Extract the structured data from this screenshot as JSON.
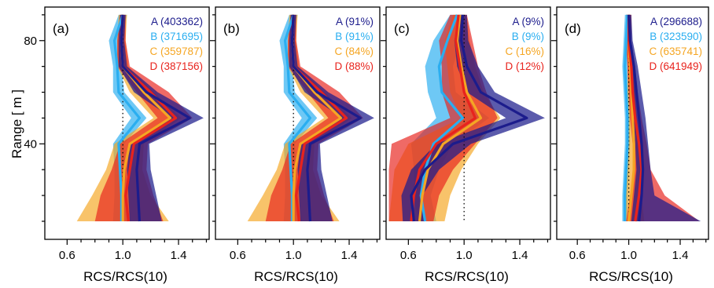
{
  "figure": {
    "ylabel": "Range [ m ]",
    "xlabel": "RCS/RCS(10)"
  },
  "colors": {
    "A": "#1c1c8c",
    "B": "#2aaef0",
    "C": "#f5a623",
    "D": "#e8231d"
  },
  "chart_data": [
    {
      "type": "line",
      "panel_label": "(a)",
      "xlabel": "RCS/RCS(10)",
      "ylabel": "Range [ m ]",
      "xlim": [
        0.44,
        1.62
      ],
      "ylim": [
        3,
        93
      ],
      "xticks": [
        0.6,
        1.0,
        1.4
      ],
      "yticks": [
        40,
        80
      ],
      "reference_x": 1.0,
      "y": [
        90,
        80,
        70,
        60,
        50,
        40,
        30,
        20,
        10
      ],
      "series": [
        {
          "key": "A",
          "legend": "A (403362)",
          "values": [
            1.0,
            0.99,
            1.0,
            1.17,
            1.48,
            1.12,
            1.1,
            1.11,
            1.12
          ],
          "band_low": [
            0.98,
            0.97,
            0.97,
            1.08,
            1.35,
            1.05,
            1.03,
            1.04,
            1.05
          ],
          "band_high": [
            1.02,
            1.01,
            1.03,
            1.25,
            1.58,
            1.19,
            1.2,
            1.24,
            1.28
          ]
        },
        {
          "key": "B",
          "legend": "B (371695)",
          "values": [
            1.0,
            0.94,
            0.96,
            0.97,
            1.12,
            0.97,
            0.98,
            0.99,
            0.99
          ],
          "band_low": [
            0.97,
            0.9,
            0.93,
            0.93,
            1.06,
            0.93,
            0.94,
            0.94,
            0.93
          ],
          "band_high": [
            1.03,
            0.98,
            0.99,
            1.01,
            1.17,
            1.01,
            1.02,
            1.04,
            1.06
          ]
        },
        {
          "key": "C",
          "legend": "C (359787)",
          "values": [
            1.0,
            0.99,
            1.0,
            1.15,
            1.34,
            1.05,
            1.01,
            1.0,
            1.0
          ],
          "band_low": [
            0.97,
            0.96,
            0.96,
            1.05,
            1.22,
            0.94,
            0.88,
            0.78,
            0.67
          ],
          "band_high": [
            1.03,
            1.02,
            1.04,
            1.22,
            1.42,
            1.15,
            1.14,
            1.2,
            1.33
          ]
        },
        {
          "key": "D",
          "legend": "D (387156)",
          "values": [
            1.0,
            0.99,
            1.0,
            1.2,
            1.38,
            1.08,
            1.05,
            1.02,
            1.04
          ],
          "band_low": [
            0.98,
            0.96,
            0.96,
            1.1,
            1.25,
            0.98,
            0.92,
            0.84,
            0.8
          ],
          "band_high": [
            1.02,
            1.02,
            1.05,
            1.33,
            1.5,
            1.18,
            1.17,
            1.22,
            1.29
          ]
        }
      ]
    },
    {
      "type": "line",
      "panel_label": "(b)",
      "xlabel": "RCS/RCS(10)",
      "ylabel": "",
      "xlim": [
        0.44,
        1.62
      ],
      "ylim": [
        3,
        93
      ],
      "xticks": [
        0.6,
        1.0,
        1.4
      ],
      "yticks": [
        40,
        80
      ],
      "reference_x": 1.0,
      "y": [
        90,
        80,
        70,
        60,
        50,
        40,
        30,
        20,
        10
      ],
      "series": [
        {
          "key": "A",
          "legend": "A (91%)",
          "values": [
            1.0,
            0.99,
            1.0,
            1.17,
            1.48,
            1.12,
            1.1,
            1.11,
            1.12
          ],
          "band_low": [
            0.98,
            0.97,
            0.97,
            1.08,
            1.35,
            1.05,
            1.03,
            1.04,
            1.05
          ],
          "band_high": [
            1.02,
            1.01,
            1.03,
            1.25,
            1.58,
            1.19,
            1.2,
            1.24,
            1.28
          ]
        },
        {
          "key": "B",
          "legend": "B (91%)",
          "values": [
            1.0,
            0.94,
            0.96,
            0.97,
            1.12,
            0.97,
            0.98,
            0.99,
            0.99
          ],
          "band_low": [
            0.97,
            0.9,
            0.93,
            0.93,
            1.06,
            0.93,
            0.94,
            0.94,
            0.93
          ],
          "band_high": [
            1.03,
            0.98,
            0.99,
            1.01,
            1.17,
            1.01,
            1.02,
            1.04,
            1.06
          ]
        },
        {
          "key": "C",
          "legend": "C (84%)",
          "values": [
            1.0,
            0.99,
            1.0,
            1.15,
            1.34,
            1.05,
            1.01,
            1.0,
            1.0
          ],
          "band_low": [
            0.97,
            0.96,
            0.96,
            1.05,
            1.22,
            0.94,
            0.88,
            0.78,
            0.67
          ],
          "band_high": [
            1.03,
            1.02,
            1.04,
            1.22,
            1.42,
            1.15,
            1.14,
            1.2,
            1.33
          ]
        },
        {
          "key": "D",
          "legend": "D (88%)",
          "values": [
            1.0,
            0.99,
            1.0,
            1.2,
            1.38,
            1.08,
            1.05,
            1.02,
            1.04
          ],
          "band_low": [
            0.98,
            0.96,
            0.96,
            1.1,
            1.25,
            0.98,
            0.92,
            0.84,
            0.8
          ],
          "band_high": [
            1.02,
            1.02,
            1.05,
            1.33,
            1.5,
            1.18,
            1.17,
            1.22,
            1.29
          ]
        }
      ]
    },
    {
      "type": "line",
      "panel_label": "(c)",
      "xlabel": "RCS/RCS(10)",
      "ylabel": "",
      "xlim": [
        0.44,
        1.62
      ],
      "ylim": [
        3,
        93
      ],
      "xticks": [
        0.6,
        1.0,
        1.4
      ],
      "yticks": [
        40,
        80
      ],
      "reference_x": 1.0,
      "y": [
        90,
        80,
        70,
        60,
        50,
        40,
        30,
        20,
        10
      ],
      "series": [
        {
          "key": "A",
          "legend": "A (9%)",
          "values": [
            0.99,
            0.98,
            1.02,
            1.12,
            1.45,
            0.92,
            0.72,
            0.62,
            0.64
          ],
          "band_low": [
            0.96,
            0.93,
            0.95,
            1.02,
            1.3,
            0.8,
            0.62,
            0.55,
            0.56
          ],
          "band_high": [
            1.02,
            1.03,
            1.1,
            1.22,
            1.58,
            1.05,
            0.82,
            0.7,
            0.72
          ]
        },
        {
          "key": "B",
          "legend": "B (9%)",
          "values": [
            0.95,
            0.88,
            0.82,
            0.84,
            0.99,
            0.78,
            0.72,
            0.69,
            0.72
          ],
          "band_low": [
            0.9,
            0.78,
            0.72,
            0.74,
            0.8,
            0.62,
            0.64,
            0.64,
            0.67
          ],
          "band_high": [
            1.0,
            0.98,
            0.92,
            0.94,
            1.18,
            0.92,
            0.82,
            0.76,
            0.8
          ]
        },
        {
          "key": "C",
          "legend": "C (16%)",
          "values": [
            0.97,
            0.95,
            0.98,
            1.02,
            1.12,
            0.85,
            0.74,
            0.7,
            0.68
          ],
          "band_low": [
            0.92,
            0.86,
            0.88,
            0.9,
            0.98,
            0.6,
            0.5,
            0.48,
            0.46
          ],
          "band_high": [
            1.02,
            1.04,
            1.08,
            1.14,
            1.26,
            1.1,
            0.98,
            0.9,
            0.86
          ]
        },
        {
          "key": "D",
          "legend": "D (12%)",
          "values": [
            0.96,
            0.94,
            0.97,
            1.0,
            1.08,
            0.8,
            0.68,
            0.64,
            0.62
          ],
          "band_low": [
            0.9,
            0.82,
            0.84,
            0.84,
            0.9,
            0.48,
            0.46,
            0.46,
            0.46
          ],
          "band_high": [
            1.02,
            1.06,
            1.1,
            1.16,
            1.24,
            1.08,
            0.92,
            0.82,
            0.78
          ]
        }
      ]
    },
    {
      "type": "line",
      "panel_label": "(d)",
      "xlabel": "RCS/RCS(10)",
      "ylabel": "",
      "xlim": [
        0.44,
        1.62
      ],
      "ylim": [
        3,
        93
      ],
      "xticks": [
        0.6,
        1.0,
        1.4
      ],
      "yticks": [
        40,
        80
      ],
      "reference_x": 1.0,
      "y": [
        90,
        80,
        70,
        60,
        50,
        40,
        30,
        20,
        10
      ],
      "series": [
        {
          "key": "A",
          "legend": "A (296688)",
          "values": [
            1.0,
            1.01,
            1.04,
            1.06,
            1.08,
            1.1,
            1.11,
            1.1,
            1.08
          ],
          "band_low": [
            0.98,
            0.99,
            1.01,
            1.02,
            1.04,
            1.05,
            1.06,
            1.04,
            1.02
          ],
          "band_high": [
            1.02,
            1.03,
            1.07,
            1.1,
            1.13,
            1.15,
            1.17,
            1.2,
            1.56
          ]
        },
        {
          "key": "B",
          "legend": "B (323590)",
          "values": [
            0.99,
            0.98,
            0.97,
            0.98,
            0.99,
            0.99,
            0.98,
            0.97,
            0.97
          ],
          "band_low": [
            0.97,
            0.96,
            0.95,
            0.96,
            0.97,
            0.97,
            0.96,
            0.95,
            0.95
          ],
          "band_high": [
            1.01,
            1.0,
            0.99,
            1.0,
            1.01,
            1.01,
            1.0,
            0.99,
            0.99
          ]
        },
        {
          "key": "C",
          "legend": "C (635741)",
          "values": [
            1.0,
            1.0,
            1.01,
            1.02,
            1.03,
            1.04,
            1.04,
            1.02,
            1.0
          ],
          "band_low": [
            0.98,
            0.98,
            0.99,
            0.99,
            1.0,
            1.0,
            0.99,
            0.97,
            0.96
          ],
          "band_high": [
            1.02,
            1.02,
            1.03,
            1.05,
            1.06,
            1.08,
            1.09,
            1.1,
            1.12
          ]
        },
        {
          "key": "D",
          "legend": "D (641949)",
          "values": [
            1.0,
            1.0,
            1.02,
            1.03,
            1.05,
            1.08,
            1.1,
            1.08,
            1.05
          ],
          "band_low": [
            0.98,
            0.98,
            0.99,
            1.0,
            1.01,
            1.03,
            1.04,
            1.01,
            0.98
          ],
          "band_high": [
            1.02,
            1.02,
            1.05,
            1.07,
            1.1,
            1.14,
            1.17,
            1.28,
            1.55
          ]
        }
      ]
    }
  ]
}
